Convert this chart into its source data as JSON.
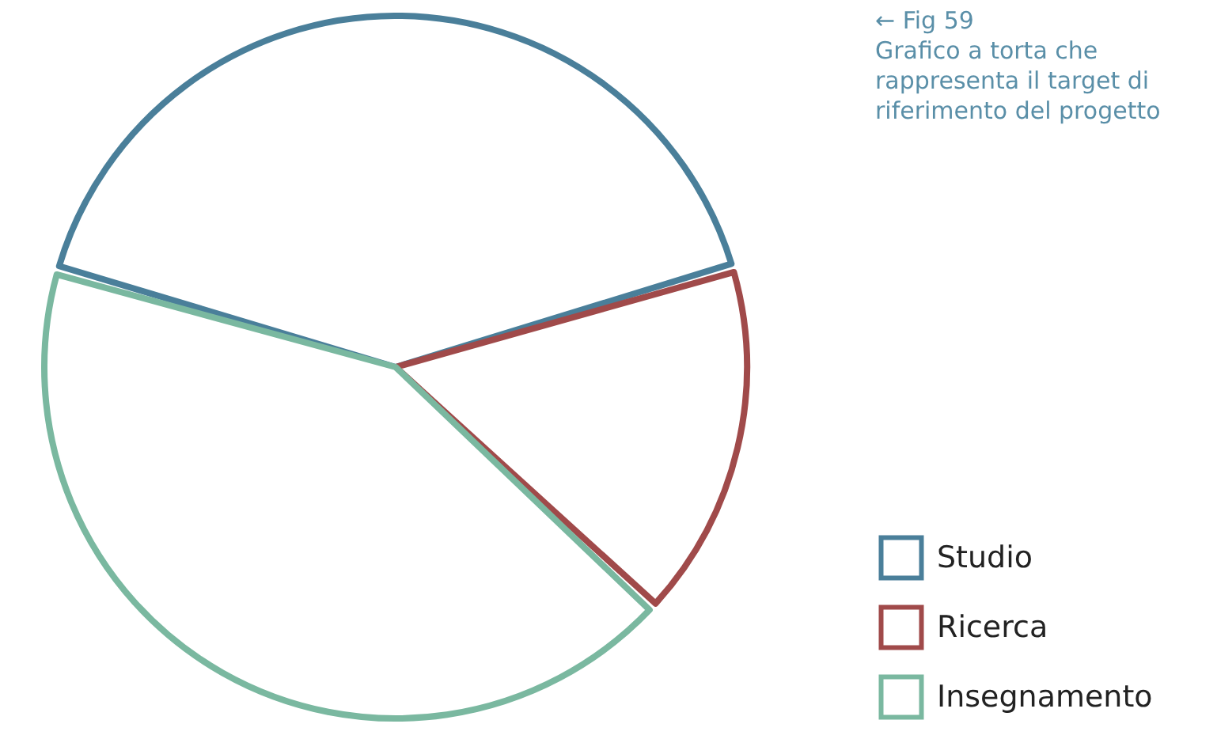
{
  "chart_data": {
    "type": "pie",
    "categories": [
      "Studio",
      "Ricerca",
      "Insegnamento"
    ],
    "values": [
      41,
      16.5,
      42.5
    ],
    "colors": [
      "#4a7f9a",
      "#a04a4a",
      "#7ab8a0"
    ],
    "legend": "bottom right",
    "annotations": [
      "← Fig 59",
      "Grafico a torta che rappresenta il target di riferimento del progetto"
    ]
  }
}
